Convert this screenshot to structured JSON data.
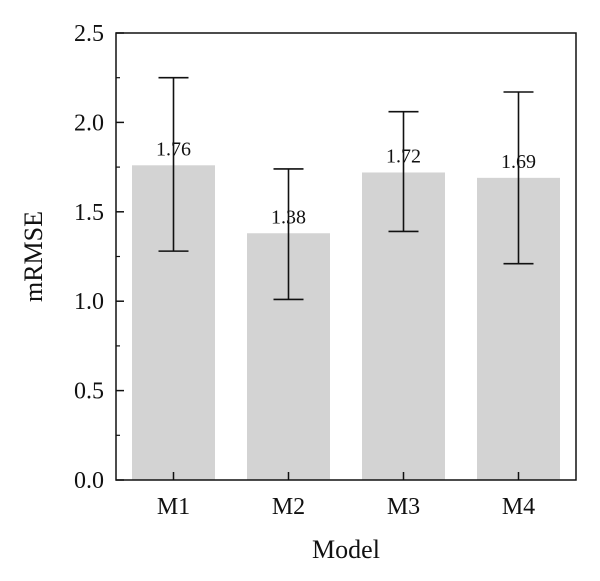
{
  "chart_data": {
    "type": "bar",
    "categories": [
      "M1",
      "M2",
      "M3",
      "M4"
    ],
    "values": [
      1.76,
      1.38,
      1.72,
      1.69
    ],
    "data_labels": [
      "1.76",
      "1.38",
      "1.72",
      "1.69"
    ],
    "error_bars": {
      "upper": [
        2.25,
        1.74,
        2.06,
        2.17
      ],
      "lower": [
        1.28,
        1.01,
        1.39,
        1.21
      ]
    },
    "title": "",
    "xlabel": "Model",
    "ylabel": "mRMSE",
    "ylim": [
      0,
      2.5
    ],
    "yticks": [
      0.0,
      0.5,
      1.0,
      1.5,
      2.0,
      2.5
    ],
    "ytick_labels": [
      "0.0",
      "0.5",
      "1.0",
      "1.5",
      "2.0",
      "2.5"
    ],
    "grid": false,
    "legend": "none",
    "bar_color": "#d3d3d3",
    "axis_color": "#111111"
  }
}
